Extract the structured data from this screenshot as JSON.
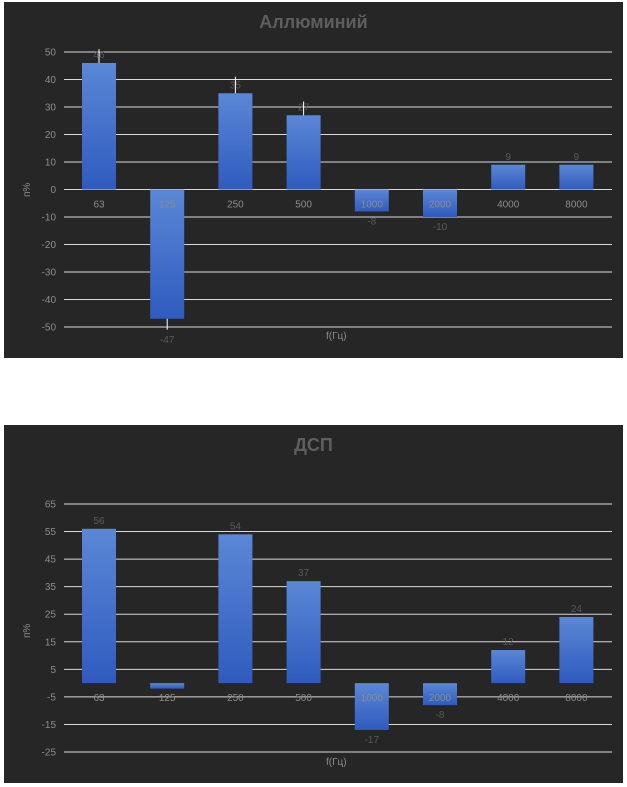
{
  "chart_data": [
    {
      "type": "bar",
      "title": "Аллюминий",
      "xlabel": "f(Гц)",
      "ylabel": "п%",
      "categories": [
        "63",
        "125",
        "250",
        "500",
        "1000",
        "2000",
        "4000",
        "8000"
      ],
      "values": [
        46,
        -47,
        35,
        27,
        -8,
        -10,
        9,
        9
      ],
      "data_labels": [
        "46",
        "-47",
        "35",
        "27",
        "-8",
        "-10",
        "9",
        "9"
      ],
      "error_bars": [
        5,
        -4,
        6,
        5,
        0,
        0,
        0,
        0
      ],
      "yticks": [
        "-50",
        "-40",
        "-30",
        "-20",
        "-10",
        "0",
        "10",
        "20",
        "30",
        "40",
        "50"
      ],
      "ylim": [
        -50,
        50
      ],
      "grid": true,
      "legend": "none",
      "colors": {
        "background": "#262626",
        "bar_top": "#5b87d6",
        "bar_bottom": "#2f5bbf",
        "grid": "#d9d9d9",
        "text": "#8c8c8c",
        "title": "#5e5e5e",
        "data_label": "#5a5a5a"
      }
    },
    {
      "type": "bar",
      "title": "ДСП",
      "xlabel": "f(Гц)",
      "ylabel": "п%",
      "categories": [
        "63",
        "125",
        "250",
        "500",
        "1000",
        "2000",
        "4000",
        "8000"
      ],
      "values": [
        56,
        -2,
        54,
        37,
        -17,
        -8,
        12,
        24
      ],
      "data_labels": [
        "56",
        "",
        "54",
        "37",
        "-17",
        "-8",
        "12",
        "24"
      ],
      "yticks": [
        "-25",
        "-15",
        "-5",
        "5",
        "15",
        "25",
        "35",
        "45",
        "55",
        "65"
      ],
      "ylim": [
        -25,
        65
      ],
      "grid": true,
      "legend": "none",
      "colors": {
        "background": "#262626",
        "bar_top": "#5b87d6",
        "bar_bottom": "#2f5bbf",
        "grid": "#d9d9d9",
        "text": "#8c8c8c",
        "title": "#5e5e5e",
        "data_label": "#5a5a5a"
      }
    }
  ]
}
